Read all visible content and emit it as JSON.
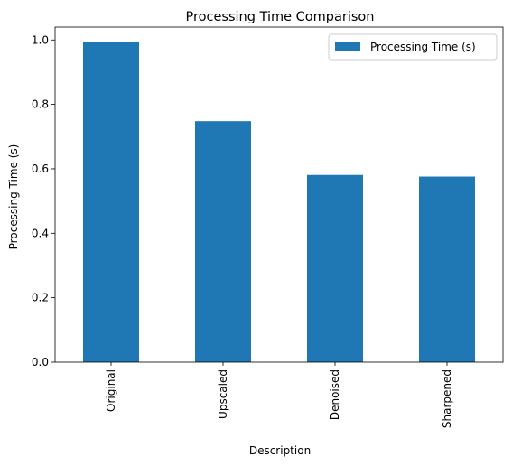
{
  "chart_data": {
    "type": "bar",
    "title": "Processing Time Comparison",
    "xlabel": "Description",
    "ylabel": "Processing Time (s)",
    "categories": [
      "Original",
      "Upscaled",
      "Denoised",
      "Sharpened"
    ],
    "series": [
      {
        "name": "Processing Time (s)",
        "values": [
          0.993,
          0.748,
          0.581,
          0.576
        ],
        "color": "#1f77b4"
      }
    ],
    "ylim": [
      0,
      1.04
    ],
    "yticks": [
      0.0,
      0.2,
      0.4,
      0.6,
      0.8,
      1.0
    ],
    "ytick_labels": [
      "0.0",
      "0.2",
      "0.4",
      "0.6",
      "0.8",
      "1.0"
    ],
    "grid": false,
    "legend_position": "top-right"
  }
}
